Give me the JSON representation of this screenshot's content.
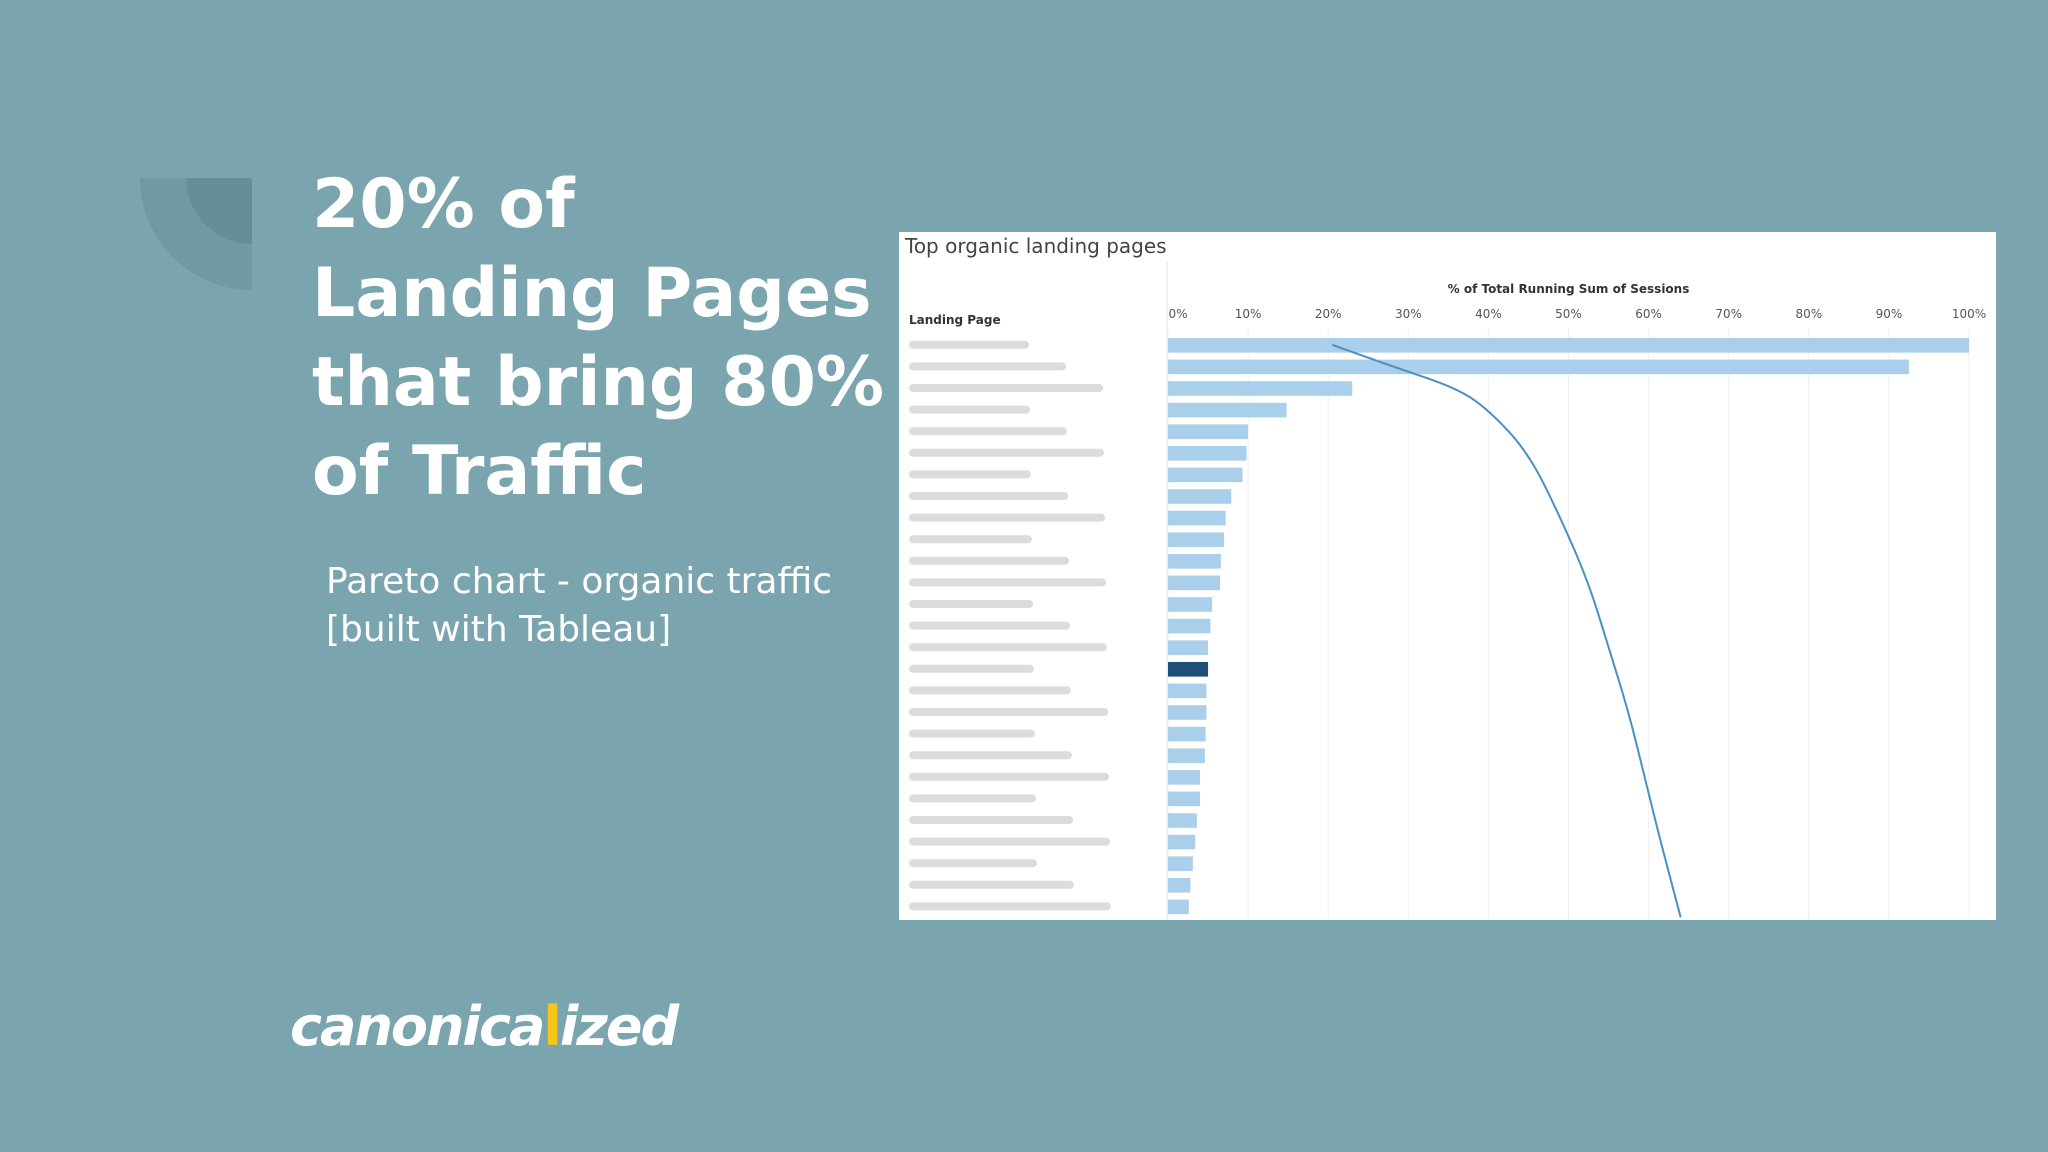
{
  "headline": [
    "20% of",
    "Landing Pages",
    "that bring 80%",
    "of Traffic"
  ],
  "subtitle": [
    "Pareto chart - organic traffic",
    "[built with Tableau]"
  ],
  "logo": {
    "text_before": "canonica",
    "mark": "l",
    "text_after": "ized",
    "mark_color": "#f5c518"
  },
  "colors": {
    "background": "#7aa5ae",
    "bar": "#a9cfea",
    "bar_highlight": "#1f4e79",
    "curve": "#4a90c2"
  },
  "chart_data": {
    "type": "bar",
    "title": "Top organic landing pages",
    "xlabel": "% of Total Running Sum of Sessions",
    "row_header": "Landing Page",
    "xlim": [
      0,
      100
    ],
    "ticks": [
      "0%",
      "10%",
      "20%",
      "30%",
      "40%",
      "50%",
      "60%",
      "70%",
      "80%",
      "90%",
      "100%"
    ],
    "values": [
      100,
      92.5,
      23,
      14.8,
      10,
      9.8,
      9.3,
      7.9,
      7.2,
      7,
      6.6,
      6.5,
      5.5,
      5.3,
      5,
      5,
      4.8,
      4.8,
      4.7,
      4.6,
      4,
      4,
      3.6,
      3.4,
      3.1,
      2.8,
      2.6
    ],
    "highlight_index": 15,
    "curve": [
      {
        "x": 20.5,
        "row": 0
      },
      {
        "x": 28,
        "row": 1
      },
      {
        "x": 36,
        "row": 2
      },
      {
        "x": 40,
        "row": 3
      },
      {
        "x": 45,
        "row": 5
      },
      {
        "x": 49,
        "row": 8
      },
      {
        "x": 52.5,
        "row": 11
      },
      {
        "x": 55,
        "row": 14
      },
      {
        "x": 57.5,
        "row": 17
      },
      {
        "x": 59.5,
        "row": 20
      },
      {
        "x": 61.5,
        "row": 23
      },
      {
        "x": 64,
        "row": 26.5
      }
    ]
  }
}
